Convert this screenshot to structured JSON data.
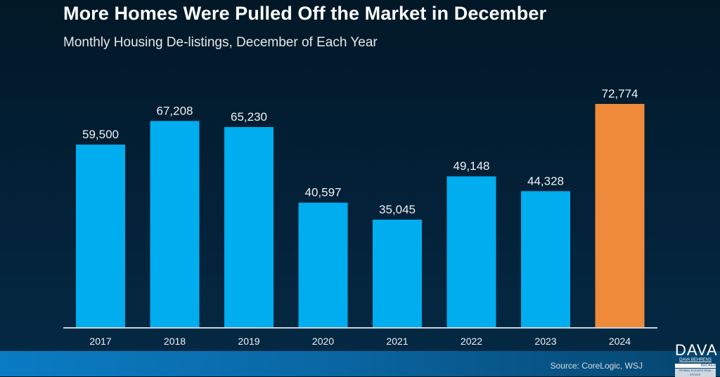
{
  "header": {
    "title": "More Homes Were Pulled Off the Market in December",
    "subtitle": "Monthly Housing De-listings, December of Each Year"
  },
  "footer": {
    "source": "Source: CoreLogic, WSJ",
    "logo_main": "DAVA",
    "logo_sub": "DAVA BEHRENS",
    "logo_role": "BROKER",
    "logo_tag": "RE/MAX ELEVATE REAL ESTATE"
  },
  "colors": {
    "bar_default": "#00adef",
    "bar_highlight": "#ef8a3a",
    "label_text": "#eef1f4",
    "axis": "#c9d2da"
  },
  "chart_data": {
    "type": "bar",
    "title": "More Homes Were Pulled Off the Market in December",
    "subtitle": "Monthly Housing De-listings, December of Each Year",
    "xlabel": "",
    "ylabel": "",
    "categories": [
      "2017",
      "2018",
      "2019",
      "2020",
      "2021",
      "2022",
      "2023",
      "2024"
    ],
    "values": [
      59500,
      67208,
      65230,
      40597,
      35045,
      49148,
      44328,
      72774
    ],
    "data_labels": [
      "59,500",
      "67,208",
      "65,230",
      "40,597",
      "35,045",
      "49,148",
      "44,328",
      "72,774"
    ],
    "highlight_index": 7,
    "ylim": [
      0,
      72774
    ],
    "grid": false,
    "legend": "none"
  }
}
